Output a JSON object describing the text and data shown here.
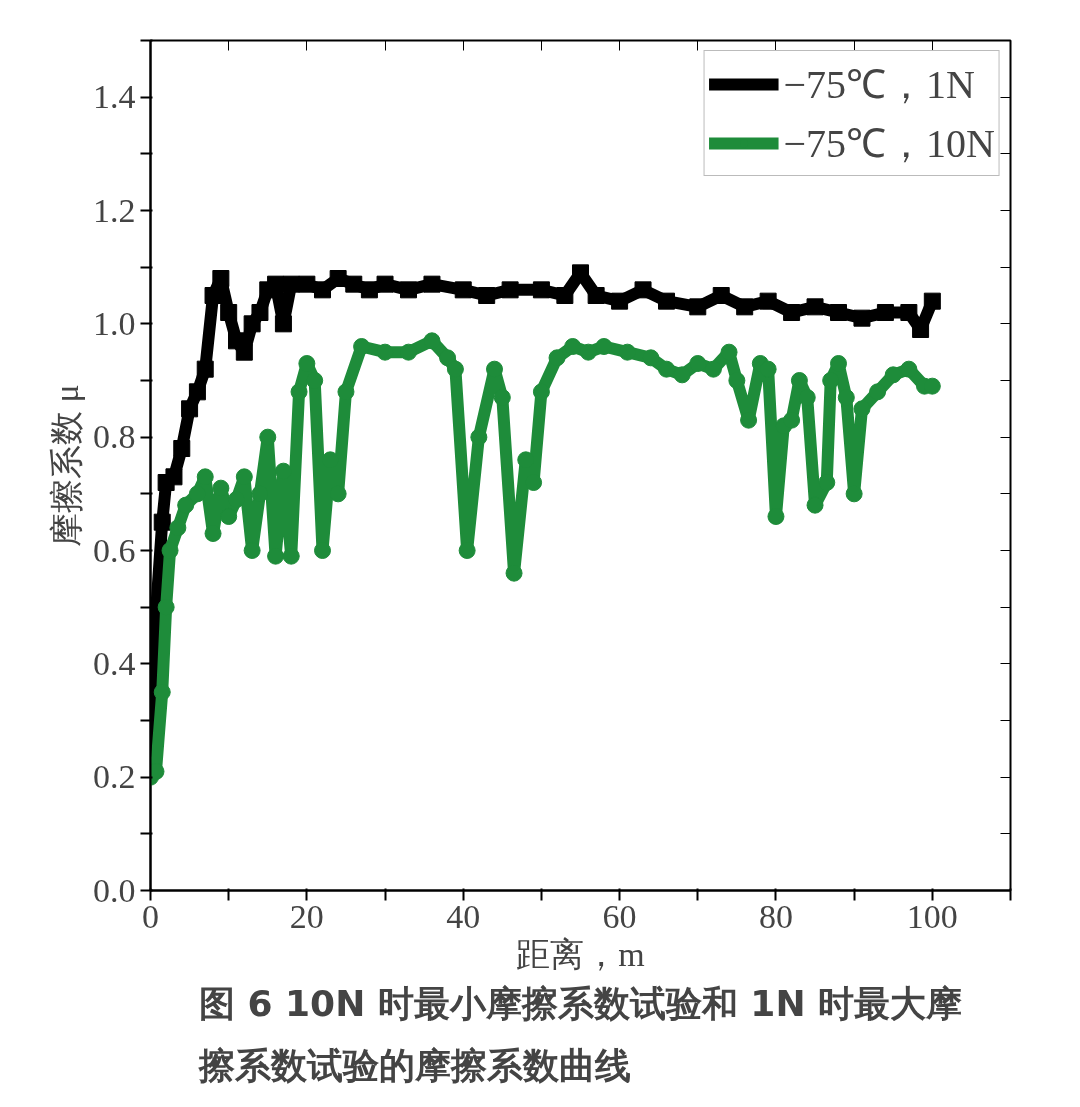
{
  "chart_data": {
    "type": "line",
    "title": "图 6 10N 时最小摩擦系数试验和 1N 时最大摩擦系数试验的摩擦系数曲线",
    "xlabel": "距离，m",
    "ylabel": "摩擦系数 μ",
    "xlim": [
      0,
      110
    ],
    "ylim": [
      0,
      1.5
    ],
    "xticks": [
      0,
      {
        "value": 10,
        "label": null
      },
      20,
      {
        "value": 30,
        "label": null
      },
      40,
      {
        "value": 50,
        "label": null
      },
      60,
      {
        "value": 70,
        "label": null
      },
      80,
      {
        "value": 90,
        "label": null
      },
      100,
      {
        "value": 110,
        "label": null
      }
    ],
    "yticks": [
      {
        "value": 0,
        "label": "0.0"
      },
      {
        "value": 0.1,
        "label": null
      },
      {
        "value": 0.2,
        "label": "0.2"
      },
      {
        "value": 0.3,
        "label": null
      },
      {
        "value": 0.4,
        "label": "0.4"
      },
      {
        "value": 0.5,
        "label": null
      },
      {
        "value": 0.6,
        "label": "0.6"
      },
      {
        "value": 0.7,
        "label": null
      },
      {
        "value": 0.8,
        "label": "0.8"
      },
      {
        "value": 0.9,
        "label": null
      },
      {
        "value": 1.0,
        "label": "1.0"
      },
      {
        "value": 1.1,
        "label": null
      },
      {
        "value": 1.2,
        "label": "1.2"
      },
      {
        "value": 1.3,
        "label": null
      },
      {
        "value": 1.4,
        "label": "1.4"
      },
      {
        "value": 1.5,
        "label": null
      }
    ],
    "grid": false,
    "legend": "top right",
    "line_style": "solid",
    "series": [
      {
        "name": "−75℃，1N",
        "color": "#000000",
        "marker": "square",
        "x": [
          0,
          0.5,
          1.5,
          2,
          3,
          4,
          5,
          6,
          7,
          8,
          9,
          10,
          11,
          12,
          13,
          14,
          15,
          16,
          17,
          18,
          20,
          22,
          24,
          26,
          28,
          30,
          33,
          36,
          40,
          43,
          46,
          50,
          53,
          55,
          57,
          60,
          63,
          66,
          70,
          73,
          76,
          79,
          82,
          85,
          88,
          91,
          94,
          97,
          98.5,
          100
        ],
        "values": [
          0.25,
          0.45,
          0.65,
          0.72,
          0.73,
          0.78,
          0.85,
          0.88,
          0.92,
          1.05,
          1.08,
          1.02,
          0.97,
          0.95,
          1.0,
          1.02,
          1.06,
          1.07,
          1.0,
          1.07,
          1.07,
          1.06,
          1.08,
          1.07,
          1.06,
          1.07,
          1.06,
          1.07,
          1.06,
          1.05,
          1.06,
          1.06,
          1.05,
          1.09,
          1.05,
          1.04,
          1.06,
          1.04,
          1.03,
          1.05,
          1.03,
          1.04,
          1.02,
          1.03,
          1.02,
          1.01,
          1.02,
          1.02,
          0.99,
          1.04
        ]
      },
      {
        "name": "−75℃，10N",
        "color": "#1e8c3a",
        "marker": "circle",
        "x": [
          0,
          0.7,
          1.5,
          2,
          2.5,
          3.5,
          4.5,
          6,
          7,
          8,
          9,
          10,
          11,
          12,
          13,
          14,
          15,
          16,
          17,
          18,
          19,
          20,
          21,
          22,
          23,
          24,
          25,
          27,
          30,
          33,
          36,
          38,
          39,
          40.5,
          42,
          44,
          45,
          46.5,
          48,
          49,
          50,
          52,
          54,
          56,
          58,
          61,
          64,
          66,
          68,
          70,
          72,
          74,
          75,
          76.5,
          78,
          79,
          80,
          81,
          82,
          83,
          84,
          85,
          86.5,
          87,
          88,
          89,
          90,
          91,
          93,
          95,
          97,
          99,
          100
        ],
        "values": [
          0.2,
          0.21,
          0.35,
          0.5,
          0.6,
          0.64,
          0.68,
          0.7,
          0.73,
          0.63,
          0.71,
          0.66,
          0.69,
          0.73,
          0.6,
          0.7,
          0.8,
          0.59,
          0.74,
          0.59,
          0.88,
          0.93,
          0.9,
          0.6,
          0.76,
          0.7,
          0.88,
          0.96,
          0.95,
          0.95,
          0.97,
          0.94,
          0.92,
          0.6,
          0.8,
          0.92,
          0.87,
          0.56,
          0.76,
          0.72,
          0.88,
          0.94,
          0.96,
          0.95,
          0.96,
          0.95,
          0.94,
          0.92,
          0.91,
          0.93,
          0.92,
          0.95,
          0.9,
          0.83,
          0.93,
          0.92,
          0.66,
          0.82,
          0.83,
          0.9,
          0.87,
          0.68,
          0.72,
          0.9,
          0.93,
          0.87,
          0.7,
          0.85,
          0.88,
          0.91,
          0.92,
          0.89,
          0.89
        ]
      }
    ]
  }
}
